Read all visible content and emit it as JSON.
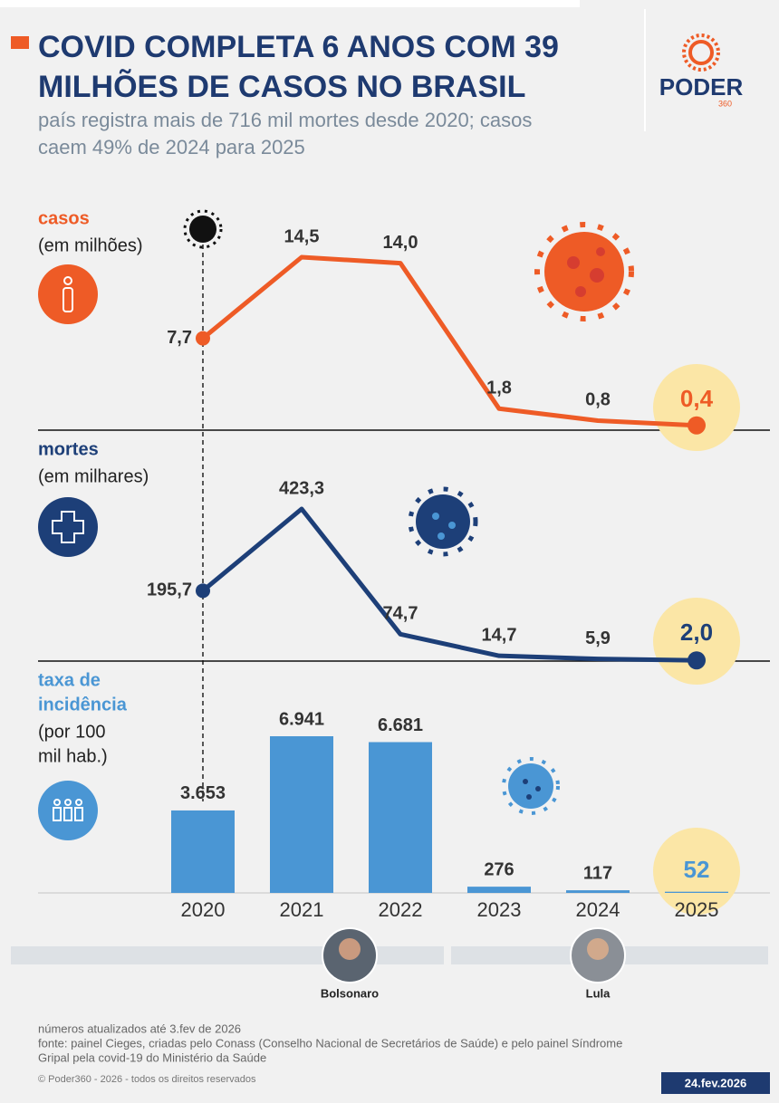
{
  "header": {
    "title": [
      "COVID COMPLETA 6 ANOS COM 39",
      "MILHÕES DE CASOS NO BRASIL"
    ],
    "subtitle": [
      "país registra mais de 716 mil mortes desde 2020; casos",
      "caem 49% de 2024 para 2025"
    ],
    "logo": {
      "name": "PODER",
      "sub": "360"
    }
  },
  "chart_data": [
    {
      "type": "line",
      "title": [
        "casos"
      ],
      "subtitle": [
        "(em milhões)"
      ],
      "color": "#ee5b26",
      "values": [
        7.7,
        14.5,
        14.0,
        1.8,
        0.8,
        0.4
      ],
      "value_labels": [
        "7,7",
        "14,5",
        "14,0",
        "1,8",
        "0,8",
        "0,4"
      ]
    },
    {
      "type": "line",
      "title": [
        "mortes"
      ],
      "subtitle": [
        "(em milhares)"
      ],
      "color": "#1d3f78",
      "values": [
        195.7,
        423.3,
        74.7,
        14.7,
        5.9,
        2.0
      ],
      "value_labels": [
        "195,7",
        "423,3",
        "74,7",
        "14,7",
        "5,9",
        "2,0"
      ]
    },
    {
      "type": "bar",
      "title": [
        "taxa de",
        "incidência"
      ],
      "subtitle": [
        "(por 100",
        "mil hab.)"
      ],
      "color": "#4a96d4",
      "categories": [
        "2020",
        "2021",
        "2022",
        "2023",
        "2024",
        "2025"
      ],
      "values": [
        3653,
        6941,
        6681,
        276,
        117,
        52
      ],
      "value_labels": [
        "3.653",
        "6.941",
        "6.681",
        "276",
        "117",
        "52"
      ]
    }
  ],
  "presidents": [
    {
      "name": "Bolsonaro"
    },
    {
      "name": "Lula"
    }
  ],
  "footer": {
    "notes": [
      "números atualizados até 3.fev de 2026",
      "fonte: painel Cieges, criadas pelo Conass (Conselho Nacional de Secretários de Saúde) e pelo painel Síndrome",
      "Gripal pela covid-19 do Ministério da Saúde"
    ],
    "copyright": "© Poder360 - 2026 - todos os direitos reservados",
    "date": "24.fev.2026"
  }
}
